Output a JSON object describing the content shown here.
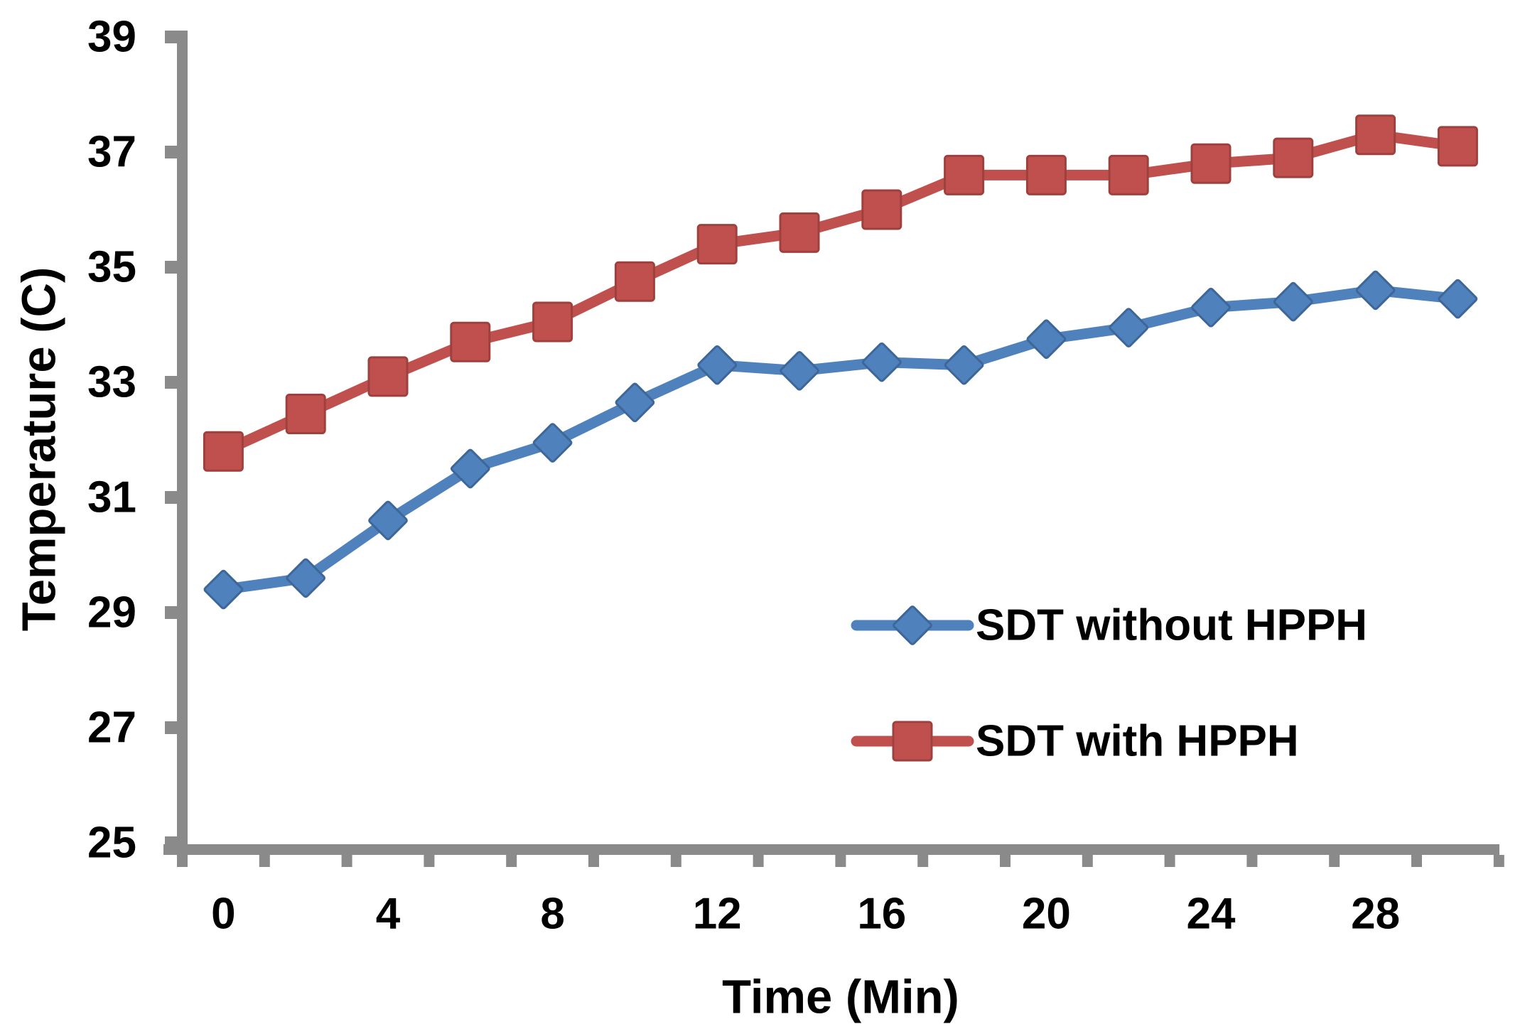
{
  "chart_data": {
    "type": "line",
    "title": "",
    "xlabel": "Time (Min)",
    "ylabel": "Temperature (C)",
    "x": [
      0,
      2,
      4,
      6,
      8,
      10,
      12,
      14,
      16,
      18,
      20,
      22,
      24,
      26,
      28,
      30
    ],
    "x_tick_label_values": [
      0,
      4,
      8,
      12,
      16,
      20,
      24,
      28
    ],
    "ylim": [
      25,
      39
    ],
    "yticks": [
      25,
      27,
      29,
      31,
      33,
      35,
      37,
      39
    ],
    "grid": false,
    "legend_position": "inside-right",
    "background": "#FFFFFF",
    "axis_color": "#8A8A8A",
    "text_color": "#000000",
    "series": [
      {
        "name": "SDT without HPPH",
        "marker": "diamond",
        "color": "#4F81BD",
        "marker_border": "#3D6699",
        "values": [
          29.4,
          29.6,
          30.6,
          31.5,
          31.95,
          32.65,
          33.3,
          33.2,
          33.35,
          33.3,
          33.75,
          33.95,
          34.3,
          34.4,
          34.6,
          34.45
        ]
      },
      {
        "name": "SDT with HPPH",
        "marker": "square",
        "color": "#C0504D",
        "marker_border": "#9E413E",
        "values": [
          31.8,
          32.45,
          33.1,
          33.7,
          34.05,
          34.75,
          35.4,
          35.6,
          36.0,
          36.6,
          36.6,
          36.6,
          36.8,
          36.9,
          37.3,
          37.1
        ]
      }
    ]
  }
}
